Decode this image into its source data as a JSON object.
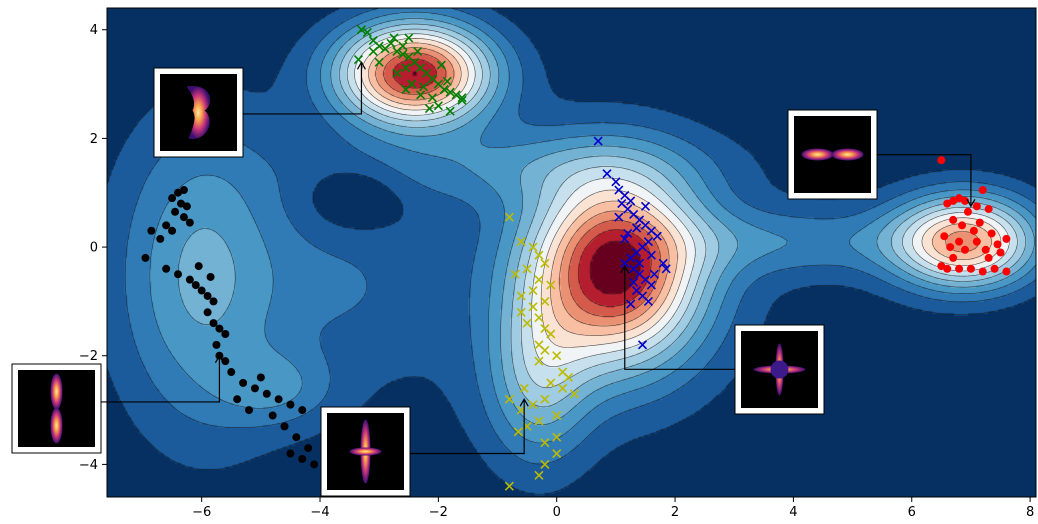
{
  "chart_data": {
    "type": "contour",
    "title": "",
    "xlabel": "",
    "ylabel": "",
    "xlim": [
      -7.6,
      8.1
    ],
    "ylim": [
      -4.6,
      4.4
    ],
    "x_ticks": [
      {
        "value": -6,
        "label": "−6"
      },
      {
        "value": -4,
        "label": "−4"
      },
      {
        "value": -2,
        "label": "−2"
      },
      {
        "value": 0,
        "label": "0"
      },
      {
        "value": 2,
        "label": "2"
      },
      {
        "value": 4,
        "label": "4"
      },
      {
        "value": 6,
        "label": "6"
      },
      {
        "value": 8,
        "label": "8"
      }
    ],
    "y_ticks": [
      {
        "value": -4,
        "label": "−4"
      },
      {
        "value": -2,
        "label": "−2"
      },
      {
        "value": 0,
        "label": "0"
      },
      {
        "value": 2,
        "label": "2"
      },
      {
        "value": 4,
        "label": "4"
      }
    ],
    "density_field": {
      "colormap": "RdBu_r",
      "levels": 14,
      "components": [
        {
          "role": "peak",
          "center": [
            -2.4,
            3.2
          ],
          "sigma": [
            0.9,
            0.65
          ],
          "weight": 1.0
        },
        {
          "role": "peak",
          "center": [
            1.0,
            -0.4
          ],
          "sigma": [
            1.0,
            1.2
          ],
          "weight": 1.0
        },
        {
          "role": "peak",
          "center": [
            6.9,
            0.1
          ],
          "sigma": [
            0.85,
            0.6
          ],
          "weight": 0.78
        },
        {
          "role": "shoulder",
          "center": [
            -0.3,
            -2.4
          ],
          "sigma": [
            0.6,
            1.1
          ],
          "weight": 0.32
        },
        {
          "role": "valley",
          "center": [
            -6.0,
            -0.5
          ],
          "sigma": [
            1.0,
            2.0
          ],
          "weight": 0.3
        },
        {
          "role": "valley",
          "center": [
            -4.7,
            -2.6
          ],
          "sigma": [
            0.7,
            0.5
          ],
          "weight": 0.16
        },
        {
          "role": "bridge",
          "center": [
            4.0,
            0.1
          ],
          "sigma": [
            1.6,
            0.45
          ],
          "weight": 0.18
        },
        {
          "role": "bridge",
          "center": [
            -0.6,
            1.5
          ],
          "sigma": [
            2.2,
            0.5
          ],
          "weight": 0.16
        },
        {
          "role": "bridge",
          "center": [
            -3.6,
            -0.7
          ],
          "sigma": [
            0.9,
            0.9
          ],
          "weight": 0.08
        },
        {
          "role": "background",
          "center": [
            -1.0,
            -0.8
          ],
          "sigma": [
            4.0,
            2.5
          ],
          "weight": 0.09
        },
        {
          "role": "hole",
          "center": [
            -3.4,
            0.9
          ],
          "sigma": [
            0.55,
            0.4
          ],
          "weight": -0.12
        }
      ]
    },
    "series": [
      {
        "color": "#008000",
        "marker": "x",
        "points": [
          [
            -3.3,
            4.0
          ],
          [
            -3.2,
            3.95
          ],
          [
            -3.1,
            3.8
          ],
          [
            -3.0,
            3.7
          ],
          [
            -2.9,
            3.65
          ],
          [
            -2.8,
            3.75
          ],
          [
            -2.7,
            3.6
          ],
          [
            -2.6,
            3.55
          ],
          [
            -2.5,
            3.5
          ],
          [
            -2.4,
            3.4
          ],
          [
            -2.55,
            3.3
          ],
          [
            -2.3,
            3.3
          ],
          [
            -2.2,
            3.2
          ],
          [
            -2.1,
            3.1
          ],
          [
            -2.0,
            3.0
          ],
          [
            -1.9,
            2.9
          ],
          [
            -1.8,
            2.85
          ],
          [
            -1.7,
            2.8
          ],
          [
            -1.6,
            2.7
          ],
          [
            -2.6,
            3.7
          ],
          [
            -2.45,
            3.0
          ],
          [
            -2.3,
            2.8
          ],
          [
            -2.0,
            2.6
          ],
          [
            -1.8,
            2.5
          ],
          [
            -1.6,
            2.75
          ],
          [
            -2.15,
            2.55
          ],
          [
            -2.5,
            3.85
          ],
          [
            -3.0,
            3.4
          ],
          [
            -3.35,
            3.45
          ],
          [
            -2.7,
            3.2
          ],
          [
            -2.35,
            3.6
          ],
          [
            -1.95,
            3.35
          ],
          [
            -2.25,
            2.95
          ],
          [
            -2.1,
            2.75
          ],
          [
            -2.55,
            2.9
          ],
          [
            -1.85,
            3.05
          ],
          [
            -2.75,
            3.85
          ],
          [
            -3.1,
            3.6
          ]
        ]
      },
      {
        "color": "#0000cc",
        "marker": "x",
        "points": [
          [
            0.7,
            1.95
          ],
          [
            0.85,
            1.35
          ],
          [
            1.0,
            1.2
          ],
          [
            1.05,
            1.05
          ],
          [
            1.15,
            0.95
          ],
          [
            1.25,
            0.85
          ],
          [
            1.1,
            0.8
          ],
          [
            1.2,
            0.7
          ],
          [
            1.3,
            0.6
          ],
          [
            1.4,
            0.5
          ],
          [
            1.5,
            0.4
          ],
          [
            1.6,
            0.3
          ],
          [
            1.7,
            0.2
          ],
          [
            1.55,
            0.1
          ],
          [
            1.45,
            0.0
          ],
          [
            1.35,
            -0.1
          ],
          [
            1.25,
            -0.2
          ],
          [
            1.15,
            -0.3
          ],
          [
            1.3,
            -0.4
          ],
          [
            1.4,
            -0.5
          ],
          [
            1.5,
            -0.6
          ],
          [
            1.6,
            -0.7
          ],
          [
            1.35,
            -0.8
          ],
          [
            1.45,
            -0.9
          ],
          [
            1.55,
            -1.0
          ],
          [
            1.25,
            -1.05
          ],
          [
            1.8,
            -0.3
          ],
          [
            1.85,
            -0.4
          ],
          [
            1.45,
            -1.8
          ],
          [
            1.05,
            0.55
          ],
          [
            1.2,
            0.25
          ],
          [
            1.6,
            -0.15
          ],
          [
            1.35,
            0.35
          ],
          [
            1.5,
            0.75
          ],
          [
            1.15,
            0.15
          ],
          [
            1.4,
            -0.3
          ],
          [
            1.3,
            -0.65
          ],
          [
            1.65,
            -0.5
          ]
        ]
      },
      {
        "color": "#ff0000",
        "marker": "o",
        "points": [
          [
            6.5,
            1.6
          ],
          [
            7.2,
            1.05
          ],
          [
            6.6,
            0.8
          ],
          [
            6.7,
            0.85
          ],
          [
            6.8,
            0.9
          ],
          [
            6.9,
            0.85
          ],
          [
            7.1,
            0.75
          ],
          [
            7.3,
            0.7
          ],
          [
            6.7,
            0.5
          ],
          [
            7.15,
            0.45
          ],
          [
            6.55,
            0.2
          ],
          [
            6.8,
            0.1
          ],
          [
            7.1,
            0.1
          ],
          [
            7.45,
            0.05
          ],
          [
            6.9,
            -0.05
          ],
          [
            6.7,
            -0.2
          ],
          [
            7.3,
            -0.2
          ],
          [
            7.5,
            -0.1
          ],
          [
            6.6,
            -0.4
          ],
          [
            6.8,
            -0.4
          ],
          [
            7.0,
            -0.4
          ],
          [
            7.2,
            -0.45
          ],
          [
            7.4,
            -0.4
          ],
          [
            7.6,
            -0.45
          ],
          [
            6.5,
            -0.35
          ],
          [
            6.85,
            0.4
          ],
          [
            7.05,
            0.3
          ],
          [
            7.35,
            0.25
          ],
          [
            6.65,
            0.0
          ],
          [
            7.6,
            0.15
          ],
          [
            6.95,
            0.65
          ],
          [
            7.25,
            -0.05
          ]
        ]
      },
      {
        "color": "#bbbb00",
        "marker": "x",
        "points": [
          [
            -0.8,
            0.55
          ],
          [
            -0.6,
            0.1
          ],
          [
            -0.4,
            0.0
          ],
          [
            -0.3,
            -0.15
          ],
          [
            -0.2,
            -0.3
          ],
          [
            -0.5,
            -0.4
          ],
          [
            -0.7,
            -0.5
          ],
          [
            -0.3,
            -0.6
          ],
          [
            -0.1,
            -0.7
          ],
          [
            -0.4,
            -0.8
          ],
          [
            -0.6,
            -0.9
          ],
          [
            -0.2,
            -1.0
          ],
          [
            -0.4,
            -1.1
          ],
          [
            -0.6,
            -1.2
          ],
          [
            -0.3,
            -1.3
          ],
          [
            -0.5,
            -1.4
          ],
          [
            -0.2,
            -1.5
          ],
          [
            -0.1,
            -1.6
          ],
          [
            -0.3,
            -1.8
          ],
          [
            -0.2,
            -1.9
          ],
          [
            0.0,
            -2.0
          ],
          [
            -0.3,
            -2.1
          ],
          [
            0.1,
            -2.3
          ],
          [
            0.2,
            -2.4
          ],
          [
            -0.1,
            -2.5
          ],
          [
            0.1,
            -2.6
          ],
          [
            0.3,
            -2.7
          ],
          [
            -0.2,
            -2.8
          ],
          [
            -0.4,
            -2.9
          ],
          [
            -0.6,
            -3.0
          ],
          [
            0.0,
            -3.1
          ],
          [
            -0.3,
            -3.2
          ],
          [
            -0.5,
            -3.3
          ],
          [
            0.0,
            -3.5
          ],
          [
            -0.2,
            -3.6
          ],
          [
            0.0,
            -3.8
          ],
          [
            -0.2,
            -4.0
          ],
          [
            -0.3,
            -4.2
          ],
          [
            -0.8,
            -4.4
          ],
          [
            -0.55,
            -2.6
          ],
          [
            -0.65,
            -3.4
          ],
          [
            -0.8,
            -2.8
          ]
        ]
      },
      {
        "color": "#000000",
        "marker": "o",
        "points": [
          [
            -6.5,
            0.9
          ],
          [
            -6.4,
            1.0
          ],
          [
            -6.3,
            1.05
          ],
          [
            -6.35,
            0.8
          ],
          [
            -6.45,
            0.65
          ],
          [
            -6.3,
            0.55
          ],
          [
            -6.2,
            0.45
          ],
          [
            -6.6,
            0.4
          ],
          [
            -6.5,
            0.3
          ],
          [
            -6.85,
            0.3
          ],
          [
            -6.95,
            -0.2
          ],
          [
            -6.6,
            -0.4
          ],
          [
            -6.4,
            -0.5
          ],
          [
            -6.2,
            -0.6
          ],
          [
            -6.1,
            -0.7
          ],
          [
            -6.0,
            -0.8
          ],
          [
            -5.9,
            -0.9
          ],
          [
            -5.8,
            -1.0
          ],
          [
            -5.9,
            -1.2
          ],
          [
            -5.8,
            -1.4
          ],
          [
            -5.7,
            -1.5
          ],
          [
            -5.6,
            -1.6
          ],
          [
            -5.75,
            -1.8
          ],
          [
            -5.7,
            -2.0
          ],
          [
            -5.6,
            -2.1
          ],
          [
            -5.5,
            -2.3
          ],
          [
            -5.3,
            -2.5
          ],
          [
            -5.1,
            -2.6
          ],
          [
            -4.9,
            -2.7
          ],
          [
            -4.7,
            -2.8
          ],
          [
            -4.5,
            -2.9
          ],
          [
            -4.3,
            -3.0
          ],
          [
            -4.6,
            -3.3
          ],
          [
            -4.4,
            -3.5
          ],
          [
            -4.2,
            -3.7
          ],
          [
            -4.5,
            -3.8
          ],
          [
            -4.3,
            -3.9
          ],
          [
            -4.1,
            -4.0
          ],
          [
            -5.0,
            -2.4
          ],
          [
            -4.8,
            -3.1
          ],
          [
            -5.4,
            -2.8
          ],
          [
            -5.2,
            -3.0
          ],
          [
            -6.7,
            0.15
          ],
          [
            -6.25,
            0.75
          ],
          [
            -6.05,
            -0.35
          ],
          [
            -5.85,
            -0.55
          ]
        ]
      }
    ],
    "insets": [
      {
        "kind": "pinched-hourglass",
        "target": [
          -3.3,
          3.4
        ],
        "elbow": [
          -3.3,
          2.45
        ]
      },
      {
        "kind": "horizontal-lobes",
        "target": [
          7.0,
          0.75
        ],
        "elbow": [
          7.0,
          1.7
        ]
      },
      {
        "kind": "vertical-lobes",
        "target": [
          -5.7,
          -2.0
        ],
        "elbow": [
          -5.7,
          -2.85
        ]
      },
      {
        "kind": "cross-tall",
        "target": [
          -0.55,
          -2.8
        ],
        "elbow": [
          -0.55,
          -3.8
        ]
      },
      {
        "kind": "cross-star",
        "target": [
          1.15,
          -0.35
        ],
        "elbow": [
          1.15,
          -2.25
        ]
      }
    ]
  }
}
